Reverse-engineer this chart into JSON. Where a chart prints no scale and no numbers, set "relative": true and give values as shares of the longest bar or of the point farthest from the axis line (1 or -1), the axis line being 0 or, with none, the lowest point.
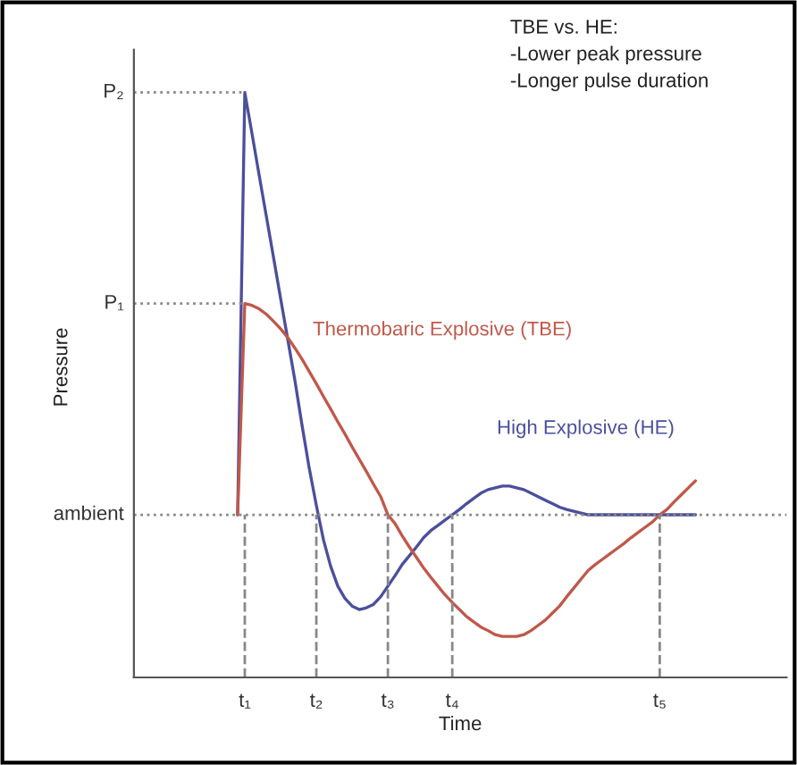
{
  "chart_data": {
    "type": "line",
    "relative": true,
    "xlabel": "Time",
    "legend": false,
    "marker": "none",
    "line_style": "solid",
    "categories": [
      null,
      "t₁",
      null,
      null,
      null,
      null,
      null,
      null,
      null,
      null,
      null,
      "t₂",
      null,
      null,
      null,
      null,
      null,
      null,
      null,
      null,
      null,
      "t₃",
      null,
      null,
      null,
      null,
      null,
      null,
      null,
      null,
      "t₄",
      null,
      null,
      null,
      null,
      null,
      null,
      null,
      null,
      null,
      null,
      null,
      null,
      null,
      null,
      null,
      null,
      null,
      null,
      null,
      null,
      null,
      null,
      null,
      null,
      null,
      null,
      null,
      null,
      "t₅",
      null,
      null,
      null,
      null,
      null
    ],
    "series": [
      {
        "name": "High Explosive (HE)",
        "color": "#4b4f9c",
        "values": [
          0.278,
          1.0,
          0.93,
          0.859,
          0.789,
          0.719,
          0.648,
          0.578,
          0.508,
          0.431,
          0.358,
          0.294,
          0.235,
          0.19,
          0.156,
          0.135,
          0.122,
          0.116,
          0.119,
          0.125,
          0.138,
          0.156,
          0.174,
          0.193,
          0.208,
          0.223,
          0.239,
          0.251,
          0.26,
          0.269,
          0.278,
          0.287,
          0.297,
          0.306,
          0.315,
          0.321,
          0.324,
          0.327,
          0.327,
          0.324,
          0.321,
          0.315,
          0.309,
          0.303,
          0.297,
          0.291,
          0.287,
          0.284,
          0.281,
          0.278,
          0.278,
          0.278,
          0.278,
          0.278,
          0.278,
          0.278,
          0.278,
          0.278,
          0.278,
          0.278,
          0.278,
          0.278,
          0.278,
          0.278,
          0.278
        ]
      },
      {
        "name": "Thermobaric Explosive (TBE)",
        "color": "#c0584a",
        "values": [
          0.278,
          0.639,
          0.636,
          0.63,
          0.621,
          0.609,
          0.596,
          0.581,
          0.563,
          0.544,
          0.523,
          0.502,
          0.48,
          0.459,
          0.437,
          0.416,
          0.394,
          0.373,
          0.352,
          0.33,
          0.309,
          0.278,
          0.263,
          0.242,
          0.223,
          0.205,
          0.187,
          0.171,
          0.156,
          0.141,
          0.128,
          0.116,
          0.104,
          0.095,
          0.086,
          0.08,
          0.073,
          0.07,
          0.07,
          0.07,
          0.073,
          0.08,
          0.089,
          0.098,
          0.11,
          0.122,
          0.138,
          0.153,
          0.168,
          0.183,
          0.193,
          0.202,
          0.211,
          0.22,
          0.229,
          0.239,
          0.248,
          0.257,
          0.266,
          0.278,
          0.287,
          0.3,
          0.312,
          0.324,
          0.336
        ]
      }
    ],
    "ref_lines": [
      {
        "axis": "y",
        "value": 1.0,
        "label": "P₂",
        "line_style": "dotted"
      },
      {
        "axis": "y",
        "value": 0.639,
        "label": "P₁",
        "line_style": "dotted"
      },
      {
        "axis": "y",
        "value": 0.278,
        "label": "ambient",
        "line_style": "dotted"
      },
      {
        "axis": "x",
        "value": "t₁",
        "line_style": "dashed"
      },
      {
        "axis": "x",
        "value": "t₂",
        "line_style": "dashed"
      },
      {
        "axis": "x",
        "value": "t₃",
        "line_style": "dashed"
      },
      {
        "axis": "x",
        "value": "t₄",
        "line_style": "dashed"
      },
      {
        "axis": "x",
        "value": "t₅",
        "line_style": "dashed"
      }
    ],
    "annotations": [
      "TBE vs. HE:",
      "-Lower peak pressure",
      "-Longer pulse duration",
      "Pressure"
    ]
  }
}
